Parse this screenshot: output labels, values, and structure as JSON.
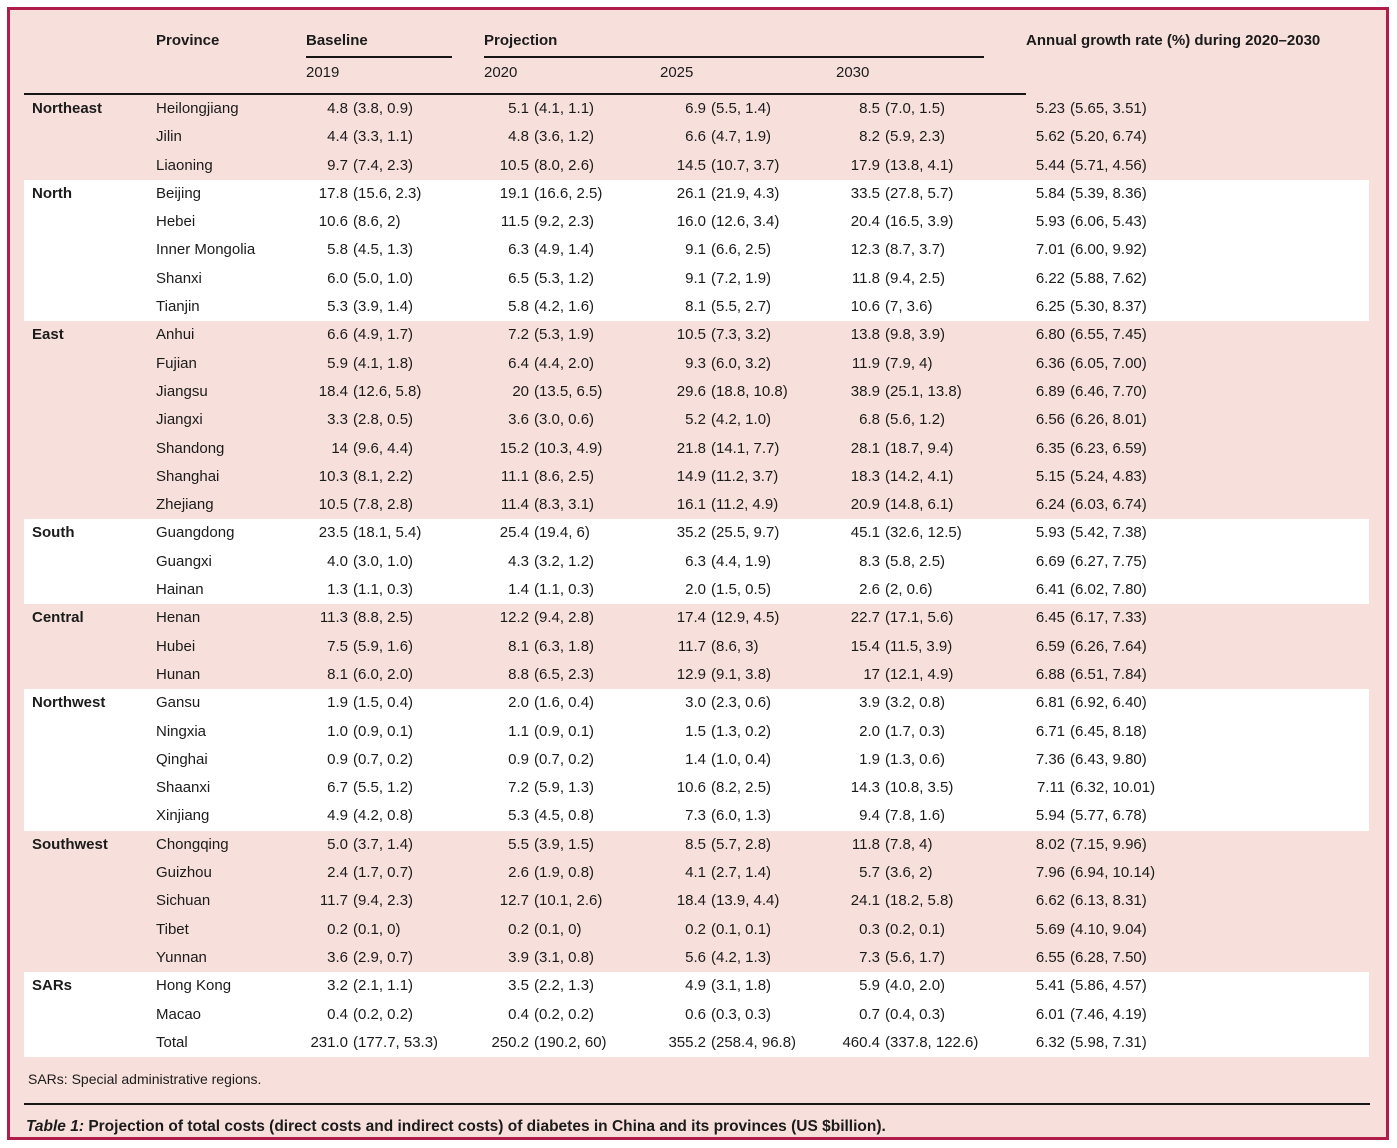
{
  "colors": {
    "figure_background": "#f7e0dc",
    "figure_border": "#b01d4a",
    "stripe": "#ffffff",
    "text": "#1b1b1b"
  },
  "table": {
    "header": {
      "province": "Province",
      "baseline": "Baseline",
      "projection": "Projection",
      "growth": "Annual growth rate (%) during 2020–2030",
      "year_2019": "2019",
      "year_2020": "2020",
      "year_2025": "2025",
      "year_2030": "2030"
    },
    "regions": [
      {
        "name": "Northeast",
        "shade": "pink",
        "rows": [
          {
            "province": "Heilongjiang",
            "cells": [
              [
                "4.8",
                "(3.8, 0.9)"
              ],
              [
                "5.1",
                "(4.1, 1.1)"
              ],
              [
                "6.9",
                "(5.5, 1.4)"
              ],
              [
                "8.5",
                "(7.0, 1.5)"
              ],
              [
                "5.23",
                "(5.65, 3.51)"
              ]
            ]
          },
          {
            "province": "Jilin",
            "cells": [
              [
                "4.4",
                "(3.3, 1.1)"
              ],
              [
                "4.8",
                "(3.6, 1.2)"
              ],
              [
                "6.6",
                "(4.7, 1.9)"
              ],
              [
                "8.2",
                "(5.9, 2.3)"
              ],
              [
                "5.62",
                "(5.20, 6.74)"
              ]
            ]
          },
          {
            "province": "Liaoning",
            "cells": [
              [
                "9.7",
                "(7.4, 2.3)"
              ],
              [
                "10.5",
                "(8.0, 2.6)"
              ],
              [
                "14.5",
                "(10.7, 3.7)"
              ],
              [
                "17.9",
                "(13.8, 4.1)"
              ],
              [
                "5.44",
                "(5.71, 4.56)"
              ]
            ]
          }
        ]
      },
      {
        "name": "North",
        "shade": "white",
        "rows": [
          {
            "province": "Beijing",
            "cells": [
              [
                "17.8",
                "(15.6, 2.3)"
              ],
              [
                "19.1",
                "(16.6, 2.5)"
              ],
              [
                "26.1",
                "(21.9, 4.3)"
              ],
              [
                "33.5",
                "(27.8, 5.7)"
              ],
              [
                "5.84",
                "(5.39, 8.36)"
              ]
            ]
          },
          {
            "province": "Hebei",
            "cells": [
              [
                "10.6",
                "(8.6, 2)"
              ],
              [
                "11.5",
                "(9.2, 2.3)"
              ],
              [
                "16.0",
                "(12.6, 3.4)"
              ],
              [
                "20.4",
                "(16.5, 3.9)"
              ],
              [
                "5.93",
                "(6.06, 5.43)"
              ]
            ]
          },
          {
            "province": "Inner Mongolia",
            "cells": [
              [
                "5.8",
                "(4.5, 1.3)"
              ],
              [
                "6.3",
                "(4.9, 1.4)"
              ],
              [
                "9.1",
                "(6.6, 2.5)"
              ],
              [
                "12.3",
                "(8.7, 3.7)"
              ],
              [
                "7.01",
                "(6.00, 9.92)"
              ]
            ]
          },
          {
            "province": "Shanxi",
            "cells": [
              [
                "6.0",
                "(5.0, 1.0)"
              ],
              [
                "6.5",
                "(5.3, 1.2)"
              ],
              [
                "9.1",
                "(7.2, 1.9)"
              ],
              [
                "11.8",
                "(9.4, 2.5)"
              ],
              [
                "6.22",
                "(5.88, 7.62)"
              ]
            ]
          },
          {
            "province": "Tianjin",
            "cells": [
              [
                "5.3",
                "(3.9, 1.4)"
              ],
              [
                "5.8",
                "(4.2, 1.6)"
              ],
              [
                "8.1",
                "(5.5, 2.7)"
              ],
              [
                "10.6",
                "(7, 3.6)"
              ],
              [
                "6.25",
                "(5.30, 8.37)"
              ]
            ]
          }
        ]
      },
      {
        "name": "East",
        "shade": "pink",
        "rows": [
          {
            "province": "Anhui",
            "cells": [
              [
                "6.6",
                "(4.9, 1.7)"
              ],
              [
                "7.2",
                "(5.3, 1.9)"
              ],
              [
                "10.5",
                "(7.3, 3.2)"
              ],
              [
                "13.8",
                "(9.8, 3.9)"
              ],
              [
                "6.80",
                "(6.55, 7.45)"
              ]
            ]
          },
          {
            "province": "Fujian",
            "cells": [
              [
                "5.9",
                "(4.1, 1.8)"
              ],
              [
                "6.4",
                "(4.4, 2.0)"
              ],
              [
                "9.3",
                "(6.0, 3.2)"
              ],
              [
                "11.9",
                "(7.9, 4)"
              ],
              [
                "6.36",
                "(6.05, 7.00)"
              ]
            ]
          },
          {
            "province": "Jiangsu",
            "cells": [
              [
                "18.4",
                "(12.6, 5.8)"
              ],
              [
                "20",
                "(13.5, 6.5)"
              ],
              [
                "29.6",
                "(18.8, 10.8)"
              ],
              [
                "38.9",
                "(25.1, 13.8)"
              ],
              [
                "6.89",
                "(6.46, 7.70)"
              ]
            ]
          },
          {
            "province": "Jiangxi",
            "cells": [
              [
                "3.3",
                "(2.8, 0.5)"
              ],
              [
                "3.6",
                "(3.0, 0.6)"
              ],
              [
                "5.2",
                "(4.2, 1.0)"
              ],
              [
                "6.8",
                "(5.6, 1.2)"
              ],
              [
                "6.56",
                "(6.26, 8.01)"
              ]
            ]
          },
          {
            "province": "Shandong",
            "cells": [
              [
                "14",
                "(9.6, 4.4)"
              ],
              [
                "15.2",
                "(10.3, 4.9)"
              ],
              [
                "21.8",
                "(14.1, 7.7)"
              ],
              [
                "28.1",
                "(18.7, 9.4)"
              ],
              [
                "6.35",
                "(6.23, 6.59)"
              ]
            ]
          },
          {
            "province": "Shanghai",
            "cells": [
              [
                "10.3",
                "(8.1, 2.2)"
              ],
              [
                "11.1",
                "(8.6, 2.5)"
              ],
              [
                "14.9",
                "(11.2, 3.7)"
              ],
              [
                "18.3",
                "(14.2, 4.1)"
              ],
              [
                "5.15",
                "(5.24, 4.83)"
              ]
            ]
          },
          {
            "province": "Zhejiang",
            "cells": [
              [
                "10.5",
                "(7.8, 2.8)"
              ],
              [
                "11.4",
                "(8.3, 3.1)"
              ],
              [
                "16.1",
                "(11.2, 4.9)"
              ],
              [
                "20.9",
                "(14.8, 6.1)"
              ],
              [
                "6.24",
                "(6.03, 6.74)"
              ]
            ]
          }
        ]
      },
      {
        "name": "South",
        "shade": "white",
        "rows": [
          {
            "province": "Guangdong",
            "cells": [
              [
                "23.5",
                "(18.1, 5.4)"
              ],
              [
                "25.4",
                "(19.4, 6)"
              ],
              [
                "35.2",
                "(25.5, 9.7)"
              ],
              [
                "45.1",
                "(32.6, 12.5)"
              ],
              [
                "5.93",
                "(5.42, 7.38)"
              ]
            ]
          },
          {
            "province": "Guangxi",
            "cells": [
              [
                "4.0",
                "(3.0, 1.0)"
              ],
              [
                "4.3",
                "(3.2, 1.2)"
              ],
              [
                "6.3",
                "(4.4, 1.9)"
              ],
              [
                "8.3",
                "(5.8, 2.5)"
              ],
              [
                "6.69",
                "(6.27, 7.75)"
              ]
            ]
          },
          {
            "province": "Hainan",
            "cells": [
              [
                "1.3",
                "(1.1, 0.3)"
              ],
              [
                "1.4",
                "(1.1, 0.3)"
              ],
              [
                "2.0",
                "(1.5, 0.5)"
              ],
              [
                "2.6",
                "(2, 0.6)"
              ],
              [
                "6.41",
                "(6.02, 7.80)"
              ]
            ]
          }
        ]
      },
      {
        "name": "Central",
        "shade": "pink",
        "rows": [
          {
            "province": "Henan",
            "cells": [
              [
                "11.3",
                "(8.8, 2.5)"
              ],
              [
                "12.2",
                "(9.4, 2.8)"
              ],
              [
                "17.4",
                "(12.9, 4.5)"
              ],
              [
                "22.7",
                "(17.1, 5.6)"
              ],
              [
                "6.45",
                "(6.17, 7.33)"
              ]
            ]
          },
          {
            "province": "Hubei",
            "cells": [
              [
                "7.5",
                "(5.9, 1.6)"
              ],
              [
                "8.1",
                "(6.3, 1.8)"
              ],
              [
                "11.7",
                "(8.6, 3)"
              ],
              [
                "15.4",
                "(11.5, 3.9)"
              ],
              [
                "6.59",
                "(6.26, 7.64)"
              ]
            ]
          },
          {
            "province": "Hunan",
            "cells": [
              [
                "8.1",
                "(6.0, 2.0)"
              ],
              [
                "8.8",
                "(6.5, 2.3)"
              ],
              [
                "12.9",
                "(9.1, 3.8)"
              ],
              [
                "17",
                "(12.1, 4.9)"
              ],
              [
                "6.88",
                "(6.51, 7.84)"
              ]
            ]
          }
        ]
      },
      {
        "name": "Northwest",
        "shade": "white",
        "rows": [
          {
            "province": "Gansu",
            "cells": [
              [
                "1.9",
                "(1.5, 0.4)"
              ],
              [
                "2.0",
                "(1.6, 0.4)"
              ],
              [
                "3.0",
                "(2.3, 0.6)"
              ],
              [
                "3.9",
                "(3.2, 0.8)"
              ],
              [
                "6.81",
                "(6.92, 6.40)"
              ]
            ]
          },
          {
            "province": "Ningxia",
            "cells": [
              [
                "1.0",
                "(0.9, 0.1)"
              ],
              [
                "1.1",
                "(0.9, 0.1)"
              ],
              [
                "1.5",
                "(1.3, 0.2)"
              ],
              [
                "2.0",
                "(1.7, 0.3)"
              ],
              [
                "6.71",
                "(6.45, 8.18)"
              ]
            ]
          },
          {
            "province": "Qinghai",
            "cells": [
              [
                "0.9",
                "(0.7, 0.2)"
              ],
              [
                "0.9",
                "(0.7, 0.2)"
              ],
              [
                "1.4",
                "(1.0, 0.4)"
              ],
              [
                "1.9",
                "(1.3, 0.6)"
              ],
              [
                "7.36",
                "(6.43, 9.80)"
              ]
            ]
          },
          {
            "province": "Shaanxi",
            "cells": [
              [
                "6.7",
                "(5.5, 1.2)"
              ],
              [
                "7.2",
                "(5.9, 1.3)"
              ],
              [
                "10.6",
                "(8.2, 2.5)"
              ],
              [
                "14.3",
                "(10.8, 3.5)"
              ],
              [
                "7.11",
                "(6.32, 10.01)"
              ]
            ]
          },
          {
            "province": "Xinjiang",
            "cells": [
              [
                "4.9",
                "(4.2, 0.8)"
              ],
              [
                "5.3",
                "(4.5, 0.8)"
              ],
              [
                "7.3",
                "(6.0, 1.3)"
              ],
              [
                "9.4",
                "(7.8, 1.6)"
              ],
              [
                "5.94",
                "(5.77, 6.78)"
              ]
            ]
          }
        ]
      },
      {
        "name": "Southwest",
        "shade": "pink",
        "rows": [
          {
            "province": "Chongqing",
            "cells": [
              [
                "5.0",
                "(3.7, 1.4)"
              ],
              [
                "5.5",
                "(3.9, 1.5)"
              ],
              [
                "8.5",
                "(5.7, 2.8)"
              ],
              [
                "11.8",
                "(7.8, 4)"
              ],
              [
                "8.02",
                "(7.15, 9.96)"
              ]
            ]
          },
          {
            "province": "Guizhou",
            "cells": [
              [
                "2.4",
                "(1.7, 0.7)"
              ],
              [
                "2.6",
                "(1.9, 0.8)"
              ],
              [
                "4.1",
                "(2.7, 1.4)"
              ],
              [
                "5.7",
                "(3.6, 2)"
              ],
              [
                "7.96",
                "(6.94, 10.14)"
              ]
            ]
          },
          {
            "province": "Sichuan",
            "cells": [
              [
                "11.7",
                "(9.4, 2.3)"
              ],
              [
                "12.7",
                "(10.1, 2.6)"
              ],
              [
                "18.4",
                "(13.9, 4.4)"
              ],
              [
                "24.1",
                "(18.2, 5.8)"
              ],
              [
                "6.62",
                "(6.13, 8.31)"
              ]
            ]
          },
          {
            "province": "Tibet",
            "cells": [
              [
                "0.2",
                "(0.1, 0)"
              ],
              [
                "0.2",
                "(0.1, 0)"
              ],
              [
                "0.2",
                "(0.1, 0.1)"
              ],
              [
                "0.3",
                "(0.2, 0.1)"
              ],
              [
                "5.69",
                "(4.10, 9.04)"
              ]
            ]
          },
          {
            "province": "Yunnan",
            "cells": [
              [
                "3.6",
                "(2.9, 0.7)"
              ],
              [
                "3.9",
                "(3.1, 0.8)"
              ],
              [
                "5.6",
                "(4.2, 1.3)"
              ],
              [
                "7.3",
                "(5.6, 1.7)"
              ],
              [
                "6.55",
                "(6.28, 7.50)"
              ]
            ]
          }
        ]
      },
      {
        "name": "SARs",
        "shade": "white",
        "rows": [
          {
            "province": "Hong Kong",
            "cells": [
              [
                "3.2",
                "(2.1, 1.1)"
              ],
              [
                "3.5",
                "(2.2, 1.3)"
              ],
              [
                "4.9",
                "(3.1, 1.8)"
              ],
              [
                "5.9",
                "(4.0, 2.0)"
              ],
              [
                "5.41",
                "(5.86, 4.57)"
              ]
            ]
          },
          {
            "province": "Macao",
            "cells": [
              [
                "0.4",
                "(0.2, 0.2)"
              ],
              [
                "0.4",
                "(0.2, 0.2)"
              ],
              [
                "0.6",
                "(0.3, 0.3)"
              ],
              [
                "0.7",
                "(0.4, 0.3)"
              ],
              [
                "6.01",
                "(7.46, 4.19)"
              ]
            ]
          },
          {
            "province": "Total",
            "cells": [
              [
                "231.0",
                "(177.7, 53.3)"
              ],
              [
                "250.2",
                "(190.2, 60)"
              ],
              [
                "355.2",
                "(258.4, 96.8)"
              ],
              [
                "460.4",
                "(337.8, 122.6)"
              ],
              [
                "6.32",
                "(5.98, 7.31)"
              ]
            ]
          }
        ]
      }
    ],
    "footnote": "SARs: Special administrative regions.",
    "caption_label": "Table 1:",
    "caption_text": "Projection of total costs (direct costs and indirect costs) of diabetes in China and its provinces (US $billion)."
  }
}
